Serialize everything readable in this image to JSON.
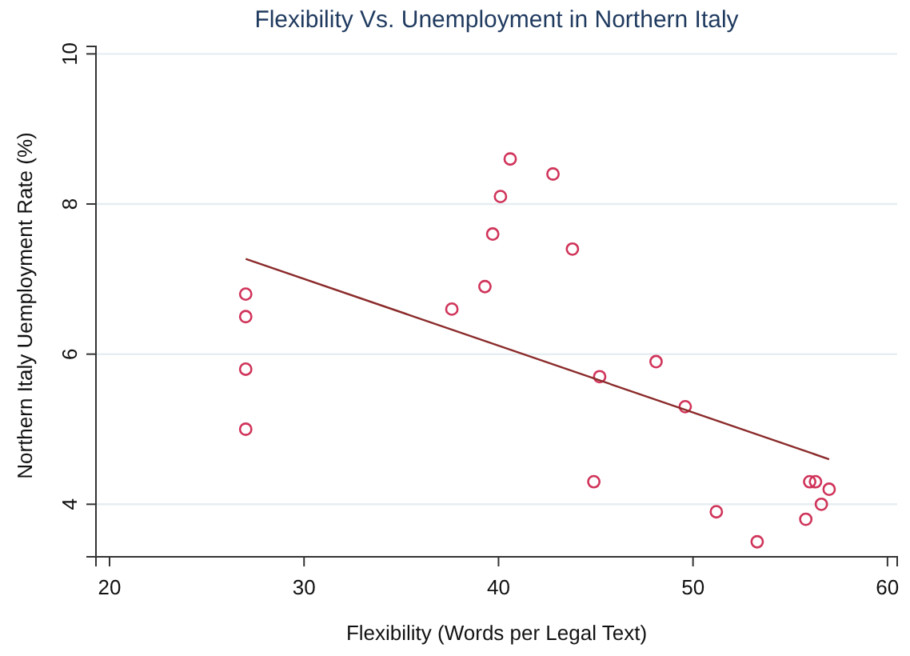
{
  "chart_data": {
    "type": "scatter",
    "title": "Flexibility Vs. Unemployment in Northern Italy",
    "xlabel": "Flexibility (Words per Legal Text)",
    "ylabel": "Northern Italy Uemployment Rate (%)",
    "xlim": [
      19.3,
      60.5
    ],
    "xticks": [
      20,
      30,
      40,
      50,
      60
    ],
    "ylim": [
      3.3,
      10.1
    ],
    "yticks": [
      4,
      6,
      8,
      10
    ],
    "grid": "y",
    "series": [
      {
        "marker": "circle",
        "color": "#d0345a",
        "x": [
          27,
          27,
          27,
          27,
          37.6,
          39.3,
          39.7,
          40.1,
          40.6,
          42.8,
          43.8,
          45.2,
          44.9,
          48.1,
          49.6,
          51.2,
          53.3,
          55.8,
          56,
          56.3,
          56.6,
          57
        ],
        "values": [
          6.8,
          6.5,
          5.8,
          5.0,
          6.6,
          6.9,
          7.6,
          8.1,
          8.6,
          8.4,
          7.4,
          5.7,
          4.3,
          5.9,
          5.3,
          3.9,
          3.5,
          3.8,
          4.3,
          4.3,
          4.0,
          4.2
        ]
      },
      {
        "type": "line",
        "marker": "none",
        "color": "#8b2a2a",
        "x": [
          27,
          57
        ],
        "values": [
          7.27,
          4.6
        ]
      }
    ]
  }
}
